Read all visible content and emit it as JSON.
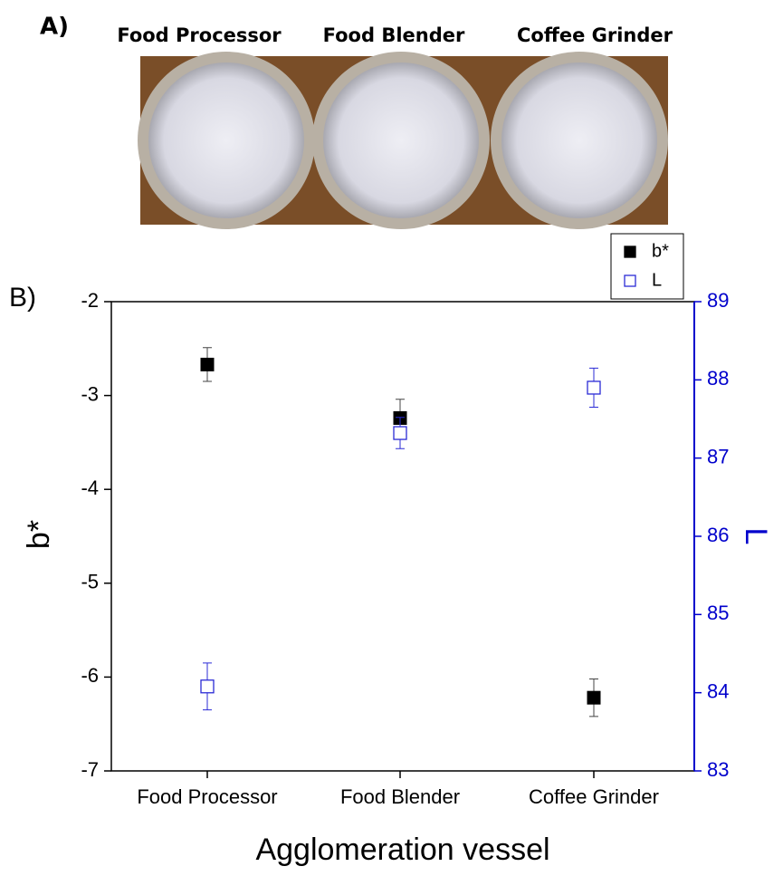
{
  "panel_a": {
    "label": "A)",
    "images": [
      "Food Processor",
      "Food Blender",
      "Coffee Grinder"
    ]
  },
  "panel_b_label": "B)",
  "chart_data": {
    "type": "scatter",
    "xlabel": "Agglomeration vessel",
    "ylabel": "b*",
    "y2label": "L",
    "categories": [
      "Food Processor",
      "Food Blender",
      "Coffee Grinder"
    ],
    "series": [
      {
        "name": "b*",
        "color": "#000000",
        "marker": "filled-square",
        "values": [
          -2.67,
          -3.24,
          -6.22
        ],
        "errors": [
          0.18,
          0.2,
          0.2
        ]
      },
      {
        "name": "L",
        "color": "#2b2bd6",
        "marker": "open-square",
        "axis": "y2",
        "values": [
          84.08,
          87.32,
          87.9
        ],
        "errors": [
          0.3,
          0.2,
          0.25
        ]
      }
    ],
    "ylim": [
      -7,
      -2
    ],
    "yticks": [
      -7,
      -6,
      -5,
      -4,
      -3,
      -2
    ],
    "y2lim": [
      83,
      89
    ],
    "y2ticks": [
      83,
      84,
      85,
      86,
      87,
      88,
      89
    ],
    "y2color": "#0000cc",
    "legend": "top-right",
    "grid": false
  }
}
